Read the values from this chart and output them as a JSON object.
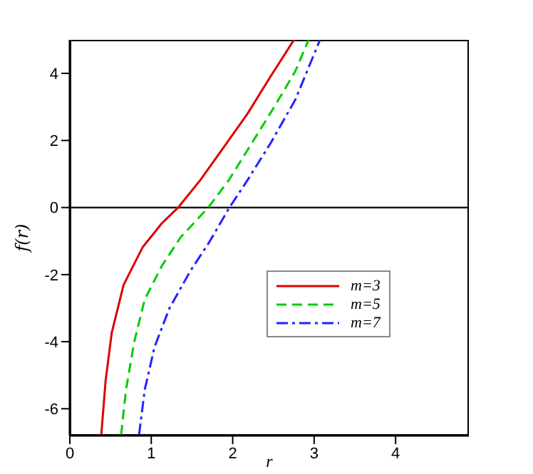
{
  "chart_data": {
    "type": "line",
    "xlabel": "r",
    "ylabel": "f(r)",
    "xlim": [
      0,
      4.9
    ],
    "ylim": [
      -6.8,
      5
    ],
    "xticks": [
      0,
      1,
      2,
      3,
      4
    ],
    "yticks": [
      -6,
      -4,
      -2,
      0,
      2,
      4
    ],
    "grid": false,
    "legend": "right",
    "marker": "none",
    "ref_lines": [
      {
        "axis": "y",
        "value": 0,
        "color": "#000000"
      }
    ],
    "series": [
      {
        "name": "m=3",
        "color": "#dd0000",
        "line_style": "solid",
        "x": [
          0.386,
          0.44,
          0.515,
          0.66,
          0.895,
          1.13,
          1.33,
          1.6,
          1.89,
          2.18,
          2.47,
          2.75
        ],
        "values": [
          -6.78,
          -5.15,
          -3.73,
          -2.31,
          -1.18,
          -0.47,
          0,
          0.81,
          1.8,
          2.79,
          3.93,
          4.99
        ]
      },
      {
        "name": "m=5",
        "color": "#00cc00",
        "line_style": "dashed",
        "x": [
          0.63,
          0.69,
          0.79,
          0.92,
          1.13,
          1.36,
          1.7,
          1.95,
          2.24,
          2.53,
          2.77,
          2.93
        ],
        "values": [
          -6.78,
          -5.43,
          -4.01,
          -2.74,
          -1.74,
          -0.89,
          0,
          0.81,
          1.94,
          3.08,
          4.07,
          4.99
        ]
      },
      {
        "name": "m=7",
        "color": "#2222ff",
        "line_style": "dashdot",
        "x": [
          0.85,
          0.92,
          1.04,
          1.22,
          1.48,
          1.71,
          1.96,
          2.18,
          2.47,
          2.77,
          3.07
        ],
        "values": [
          -6.78,
          -5.43,
          -4.16,
          -3.02,
          -1.89,
          -1.04,
          0,
          0.81,
          1.94,
          3.22,
          4.99
        ]
      }
    ]
  }
}
